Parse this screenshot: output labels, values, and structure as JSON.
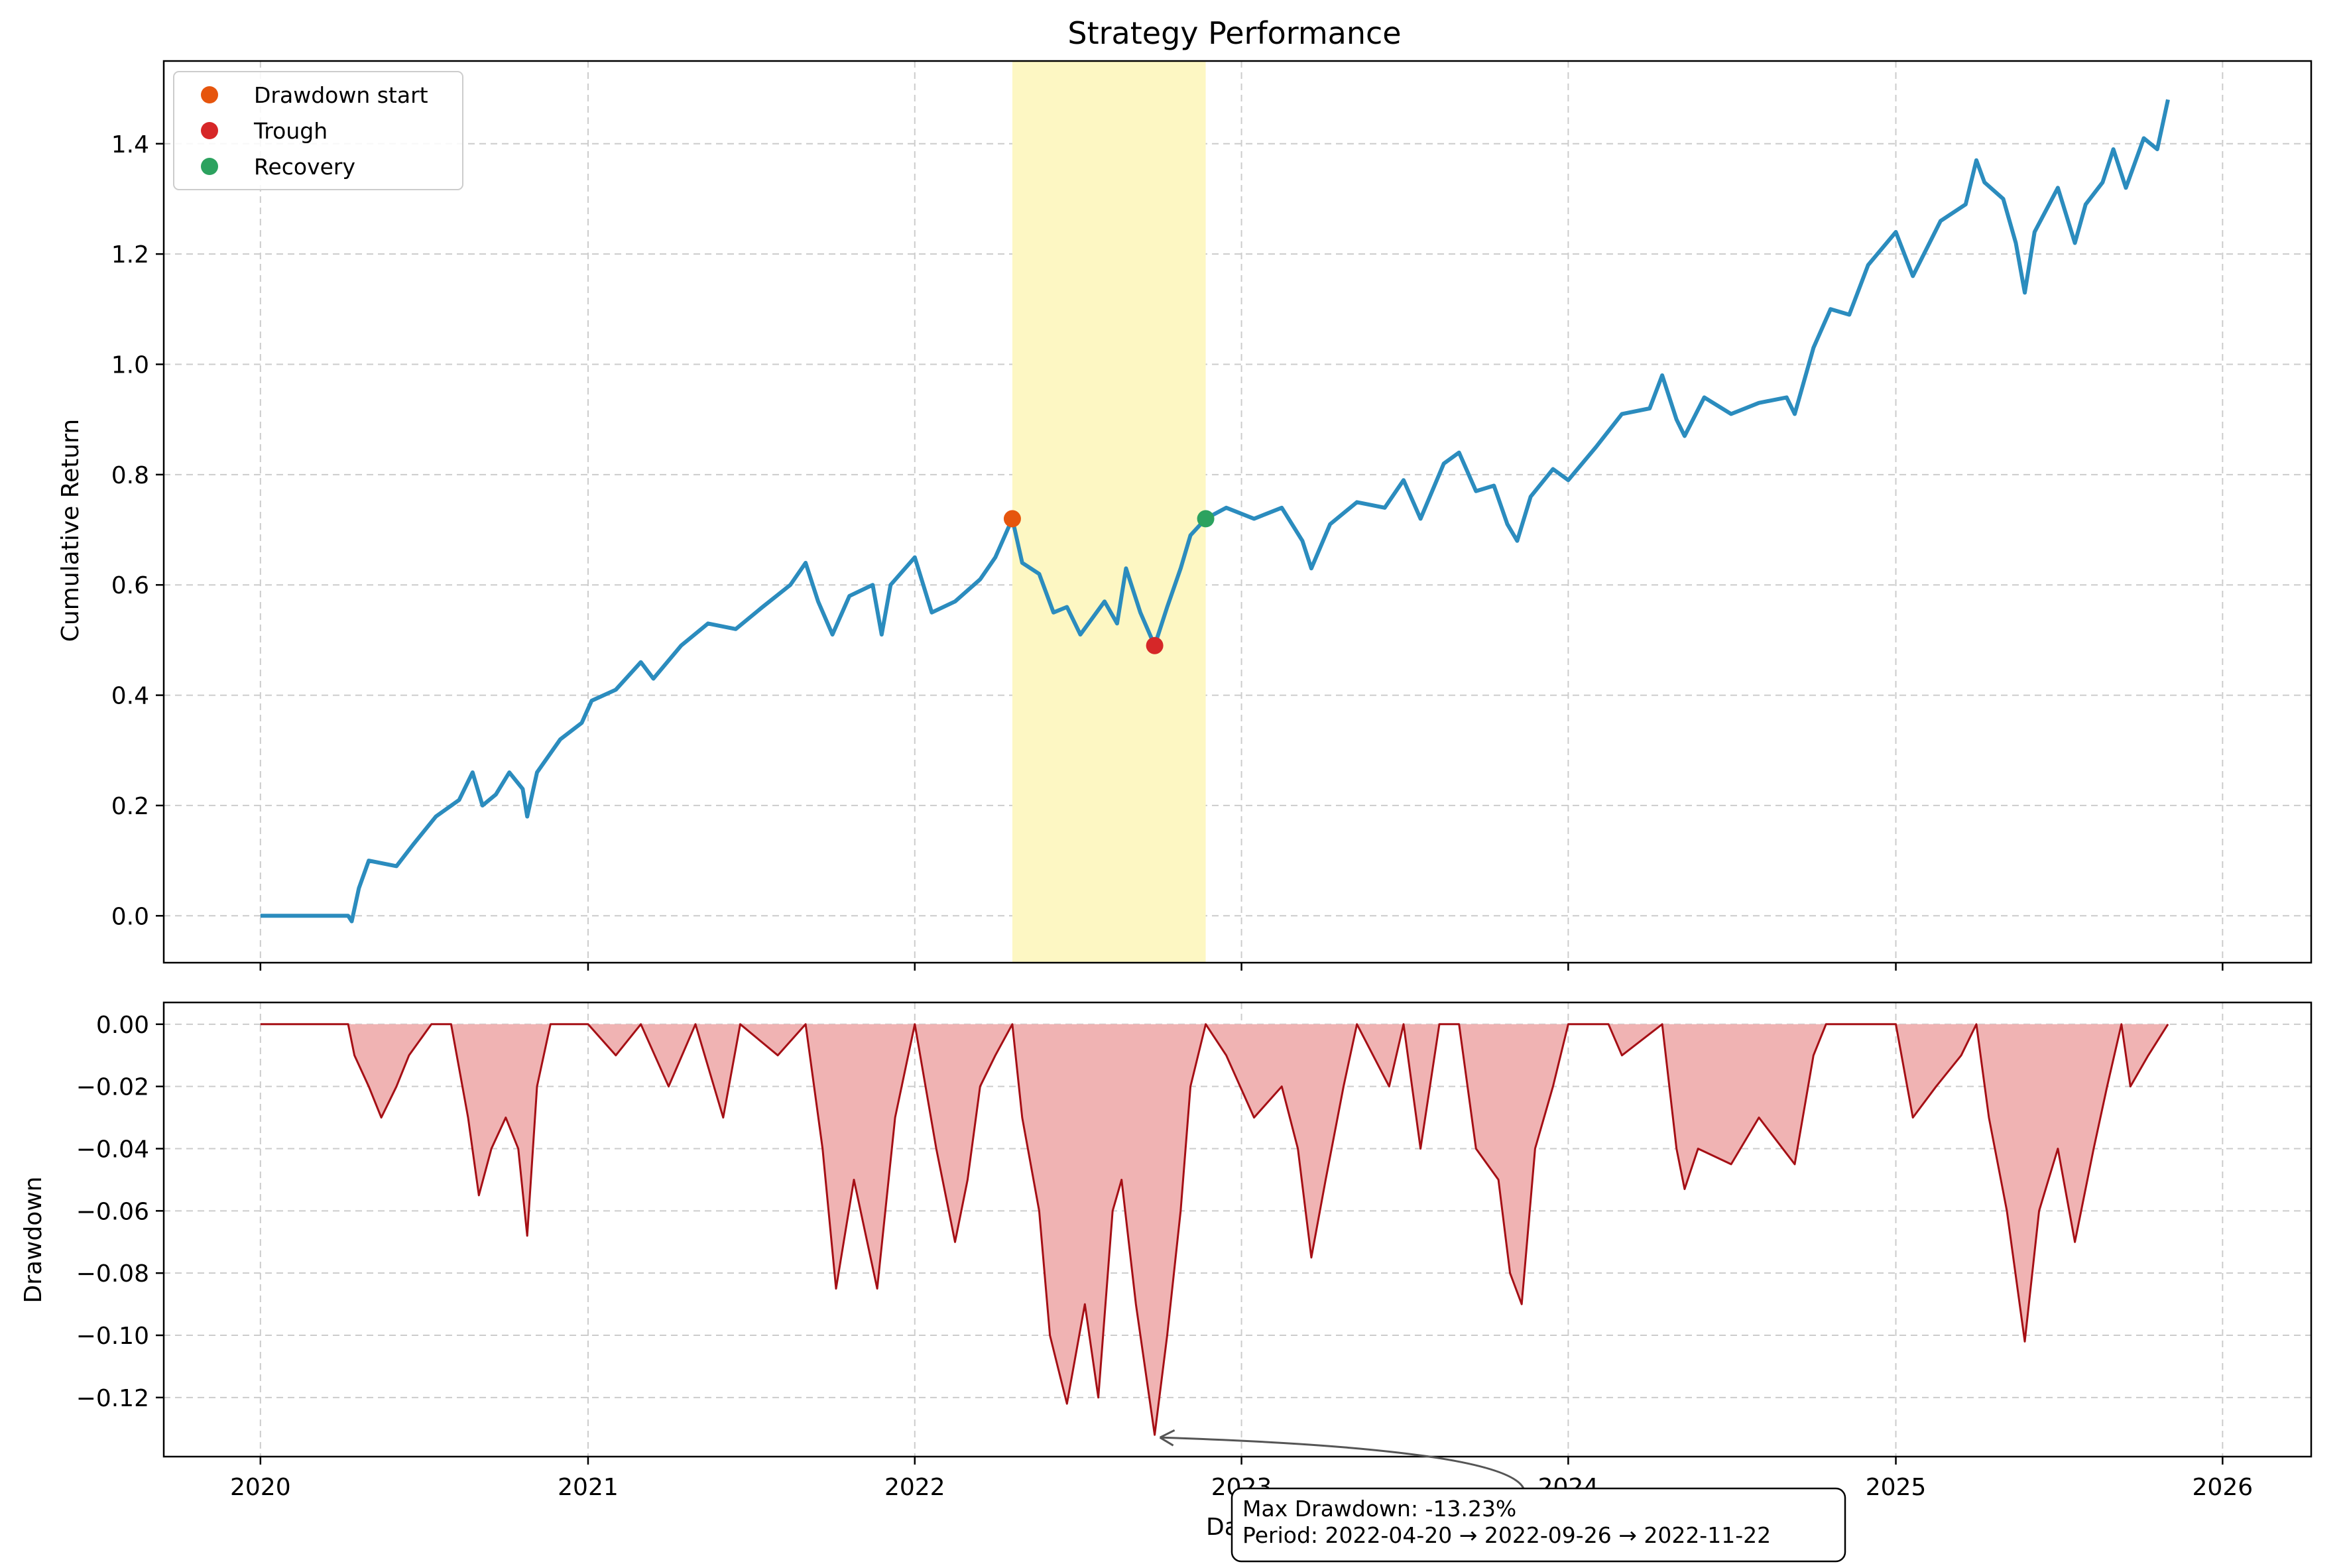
{
  "figure_title": "Strategy Performance",
  "chart_data": [
    {
      "type": "line",
      "title": "Strategy Performance",
      "xlabel": "",
      "ylabel": "Cumulative Return",
      "xlim": [
        "2019-09-15",
        "2026-04-10"
      ],
      "ylim": [
        -0.085,
        1.55
      ],
      "x_ticks": [
        "2020",
        "2021",
        "2022",
        "2023",
        "2024",
        "2025",
        "2026"
      ],
      "y_ticks": [
        0.0,
        0.2,
        0.4,
        0.6,
        0.8,
        1.0,
        1.2,
        1.4
      ],
      "y_tick_labels": [
        "0.0",
        "0.2",
        "0.4",
        "0.6",
        "0.8",
        "1.0",
        "1.2",
        "1.4"
      ],
      "grid": true,
      "legend_position": "top-left",
      "legend": [
        "Drawdown start",
        "Trough",
        "Recovery"
      ],
      "shaded_period": {
        "start": "2022-04-20",
        "end": "2022-11-22",
        "color": "#fdf7c3"
      },
      "line_color": "#2b8cbe",
      "series": [
        {
          "name": "",
          "color": "#2b8cbe",
          "points": [
            [
              "2020-01-01",
              0.0
            ],
            [
              "2020-04-08",
              0.0
            ],
            [
              "2020-04-12",
              -0.01
            ],
            [
              "2020-04-20",
              0.05
            ],
            [
              "2020-05-01",
              0.1
            ],
            [
              "2020-06-01",
              0.09
            ],
            [
              "2020-06-20",
              0.13
            ],
            [
              "2020-07-15",
              0.18
            ],
            [
              "2020-08-10",
              0.21
            ],
            [
              "2020-08-25",
              0.26
            ],
            [
              "2020-09-05",
              0.2
            ],
            [
              "2020-09-20",
              0.22
            ],
            [
              "2020-10-05",
              0.26
            ],
            [
              "2020-10-20",
              0.23
            ],
            [
              "2020-10-25",
              0.18
            ],
            [
              "2020-11-05",
              0.26
            ],
            [
              "2020-12-01",
              0.32
            ],
            [
              "2020-12-25",
              0.35
            ],
            [
              "2021-01-05",
              0.39
            ],
            [
              "2021-02-01",
              0.41
            ],
            [
              "2021-03-01",
              0.46
            ],
            [
              "2021-03-15",
              0.43
            ],
            [
              "2021-04-15",
              0.49
            ],
            [
              "2021-05-15",
              0.53
            ],
            [
              "2021-06-15",
              0.52
            ],
            [
              "2021-07-15",
              0.56
            ],
            [
              "2021-08-15",
              0.6
            ],
            [
              "2021-09-01",
              0.64
            ],
            [
              "2021-09-15",
              0.57
            ],
            [
              "2021-10-01",
              0.51
            ],
            [
              "2021-10-20",
              0.58
            ],
            [
              "2021-11-15",
              0.6
            ],
            [
              "2021-11-25",
              0.51
            ],
            [
              "2021-12-05",
              0.6
            ],
            [
              "2022-01-01",
              0.65
            ],
            [
              "2022-01-20",
              0.55
            ],
            [
              "2022-02-15",
              0.57
            ],
            [
              "2022-03-15",
              0.61
            ],
            [
              "2022-04-01",
              0.65
            ],
            [
              "2022-04-20",
              0.72
            ],
            [
              "2022-05-01",
              0.64
            ],
            [
              "2022-05-20",
              0.62
            ],
            [
              "2022-06-05",
              0.55
            ],
            [
              "2022-06-20",
              0.56
            ],
            [
              "2022-07-05",
              0.51
            ],
            [
              "2022-08-01",
              0.57
            ],
            [
              "2022-08-15",
              0.53
            ],
            [
              "2022-08-25",
              0.63
            ],
            [
              "2022-09-10",
              0.55
            ],
            [
              "2022-09-26",
              0.49
            ],
            [
              "2022-10-10",
              0.56
            ],
            [
              "2022-10-25",
              0.63
            ],
            [
              "2022-11-05",
              0.69
            ],
            [
              "2022-11-22",
              0.72
            ],
            [
              "2022-12-15",
              0.74
            ],
            [
              "2023-01-15",
              0.72
            ],
            [
              "2023-02-15",
              0.74
            ],
            [
              "2023-03-10",
              0.68
            ],
            [
              "2023-03-20",
              0.63
            ],
            [
              "2023-04-10",
              0.71
            ],
            [
              "2023-05-10",
              0.75
            ],
            [
              "2023-06-10",
              0.74
            ],
            [
              "2023-07-01",
              0.79
            ],
            [
              "2023-07-20",
              0.72
            ],
            [
              "2023-08-15",
              0.82
            ],
            [
              "2023-09-01",
              0.84
            ],
            [
              "2023-09-20",
              0.77
            ],
            [
              "2023-10-10",
              0.78
            ],
            [
              "2023-10-25",
              0.71
            ],
            [
              "2023-11-05",
              0.68
            ],
            [
              "2023-11-20",
              0.76
            ],
            [
              "2023-12-15",
              0.81
            ],
            [
              "2024-01-01",
              0.79
            ],
            [
              "2024-02-01",
              0.85
            ],
            [
              "2024-03-01",
              0.91
            ],
            [
              "2024-04-01",
              0.92
            ],
            [
              "2024-04-15",
              0.98
            ],
            [
              "2024-05-01",
              0.9
            ],
            [
              "2024-05-10",
              0.87
            ],
            [
              "2024-06-01",
              0.94
            ],
            [
              "2024-07-01",
              0.91
            ],
            [
              "2024-08-01",
              0.93
            ],
            [
              "2024-09-01",
              0.94
            ],
            [
              "2024-09-10",
              0.91
            ],
            [
              "2024-10-01",
              1.03
            ],
            [
              "2024-10-20",
              1.1
            ],
            [
              "2024-11-10",
              1.09
            ],
            [
              "2024-12-01",
              1.18
            ],
            [
              "2025-01-01",
              1.24
            ],
            [
              "2025-01-20",
              1.16
            ],
            [
              "2025-02-20",
              1.26
            ],
            [
              "2025-03-20",
              1.29
            ],
            [
              "2025-04-01",
              1.37
            ],
            [
              "2025-04-10",
              1.33
            ],
            [
              "2025-05-01",
              1.3
            ],
            [
              "2025-05-15",
              1.22
            ],
            [
              "2025-05-25",
              1.13
            ],
            [
              "2025-06-05",
              1.24
            ],
            [
              "2025-07-01",
              1.32
            ],
            [
              "2025-07-20",
              1.22
            ],
            [
              "2025-08-01",
              1.29
            ],
            [
              "2025-08-20",
              1.33
            ],
            [
              "2025-09-01",
              1.39
            ],
            [
              "2025-09-15",
              1.32
            ],
            [
              "2025-10-05",
              1.41
            ],
            [
              "2025-10-20",
              1.39
            ],
            [
              "2025-11-01",
              1.48
            ]
          ]
        },
        {
          "name": "Drawdown start",
          "type": "scatter",
          "color": "#e6550d",
          "points": [
            [
              "2022-04-20",
              0.72
            ]
          ]
        },
        {
          "name": "Trough",
          "type": "scatter",
          "color": "#d62728",
          "points": [
            [
              "2022-09-26",
              0.49
            ]
          ]
        },
        {
          "name": "Recovery",
          "type": "scatter",
          "color": "#2ca25f",
          "points": [
            [
              "2022-11-22",
              0.72
            ]
          ]
        }
      ]
    },
    {
      "type": "area",
      "title": "",
      "xlabel": "Date",
      "ylabel": "Drawdown",
      "xlim": [
        "2019-09-15",
        "2026-04-10"
      ],
      "ylim": [
        -0.139,
        0.007
      ],
      "x_ticks": [
        "2020",
        "2021",
        "2022",
        "2023",
        "2024",
        "2025",
        "2026"
      ],
      "y_ticks": [
        0.0,
        -0.02,
        -0.04,
        -0.06,
        -0.08,
        -0.1,
        -0.12
      ],
      "y_tick_labels": [
        "0.00",
        "−0.02",
        "−0.04",
        "−0.06",
        "−0.08",
        "−0.10",
        "−0.12"
      ],
      "grid": true,
      "line_color": "#a50f15",
      "fill_color": "#f0b3b3",
      "series": [
        {
          "name": "",
          "points": [
            [
              "2020-01-01",
              0.0
            ],
            [
              "2020-04-08",
              0.0
            ],
            [
              "2020-04-15",
              -0.01
            ],
            [
              "2020-05-01",
              -0.02
            ],
            [
              "2020-05-15",
              -0.03
            ],
            [
              "2020-06-01",
              -0.02
            ],
            [
              "2020-06-15",
              -0.01
            ],
            [
              "2020-07-10",
              0.0
            ],
            [
              "2020-08-01",
              0.0
            ],
            [
              "2020-08-20",
              -0.03
            ],
            [
              "2020-09-01",
              -0.055
            ],
            [
              "2020-09-15",
              -0.04
            ],
            [
              "2020-10-01",
              -0.03
            ],
            [
              "2020-10-15",
              -0.04
            ],
            [
              "2020-10-25",
              -0.068
            ],
            [
              "2020-11-05",
              -0.02
            ],
            [
              "2020-11-20",
              0.0
            ],
            [
              "2021-01-01",
              0.0
            ],
            [
              "2021-02-01",
              -0.01
            ],
            [
              "2021-03-01",
              0.0
            ],
            [
              "2021-04-01",
              -0.02
            ],
            [
              "2021-05-01",
              0.0
            ],
            [
              "2021-06-01",
              -0.03
            ],
            [
              "2021-06-20",
              0.0
            ],
            [
              "2021-08-01",
              -0.01
            ],
            [
              "2021-09-01",
              0.0
            ],
            [
              "2021-09-20",
              -0.04
            ],
            [
              "2021-10-05",
              -0.085
            ],
            [
              "2021-10-25",
              -0.05
            ],
            [
              "2021-11-20",
              -0.085
            ],
            [
              "2021-12-10",
              -0.03
            ],
            [
              "2022-01-01",
              0.0
            ],
            [
              "2022-01-25",
              -0.04
            ],
            [
              "2022-02-15",
              -0.07
            ],
            [
              "2022-03-01",
              -0.05
            ],
            [
              "2022-03-15",
              -0.02
            ],
            [
              "2022-04-01",
              -0.01
            ],
            [
              "2022-04-20",
              0.0
            ],
            [
              "2022-05-01",
              -0.03
            ],
            [
              "2022-05-20",
              -0.06
            ],
            [
              "2022-06-01",
              -0.1
            ],
            [
              "2022-06-20",
              -0.122
            ],
            [
              "2022-07-10",
              -0.09
            ],
            [
              "2022-07-25",
              -0.12
            ],
            [
              "2022-08-10",
              -0.06
            ],
            [
              "2022-08-20",
              -0.05
            ],
            [
              "2022-09-05",
              -0.09
            ],
            [
              "2022-09-26",
              -0.132
            ],
            [
              "2022-10-10",
              -0.1
            ],
            [
              "2022-10-25",
              -0.06
            ],
            [
              "2022-11-05",
              -0.02
            ],
            [
              "2022-11-22",
              0.0
            ],
            [
              "2022-12-15",
              -0.01
            ],
            [
              "2023-01-15",
              -0.03
            ],
            [
              "2023-02-15",
              -0.02
            ],
            [
              "2023-03-05",
              -0.04
            ],
            [
              "2023-03-20",
              -0.075
            ],
            [
              "2023-04-05",
              -0.05
            ],
            [
              "2023-04-25",
              -0.02
            ],
            [
              "2023-05-10",
              0.0
            ],
            [
              "2023-06-15",
              -0.02
            ],
            [
              "2023-07-01",
              0.0
            ],
            [
              "2023-07-20",
              -0.04
            ],
            [
              "2023-08-10",
              0.0
            ],
            [
              "2023-09-01",
              0.0
            ],
            [
              "2023-09-20",
              -0.04
            ],
            [
              "2023-10-15",
              -0.05
            ],
            [
              "2023-10-28",
              -0.08
            ],
            [
              "2023-11-10",
              -0.09
            ],
            [
              "2023-11-25",
              -0.04
            ],
            [
              "2023-12-15",
              -0.02
            ],
            [
              "2024-01-01",
              0.0
            ],
            [
              "2024-02-15",
              0.0
            ],
            [
              "2024-03-01",
              -0.01
            ],
            [
              "2024-04-15",
              0.0
            ],
            [
              "2024-05-01",
              -0.04
            ],
            [
              "2024-05-10",
              -0.053
            ],
            [
              "2024-05-25",
              -0.04
            ],
            [
              "2024-07-01",
              -0.045
            ],
            [
              "2024-08-01",
              -0.03
            ],
            [
              "2024-09-10",
              -0.045
            ],
            [
              "2024-10-01",
              -0.01
            ],
            [
              "2024-10-15",
              0.0
            ],
            [
              "2024-12-01",
              0.0
            ],
            [
              "2025-01-01",
              0.0
            ],
            [
              "2025-01-20",
              -0.03
            ],
            [
              "2025-02-15",
              -0.02
            ],
            [
              "2025-03-15",
              -0.01
            ],
            [
              "2025-04-01",
              0.0
            ],
            [
              "2025-04-15",
              -0.03
            ],
            [
              "2025-05-05",
              -0.06
            ],
            [
              "2025-05-25",
              -0.102
            ],
            [
              "2025-06-10",
              -0.06
            ],
            [
              "2025-07-01",
              -0.04
            ],
            [
              "2025-07-20",
              -0.07
            ],
            [
              "2025-08-10",
              -0.04
            ],
            [
              "2025-08-25",
              -0.02
            ],
            [
              "2025-09-10",
              0.0
            ],
            [
              "2025-09-20",
              -0.02
            ],
            [
              "2025-10-10",
              -0.01
            ],
            [
              "2025-11-01",
              0.0
            ]
          ]
        }
      ],
      "annotation": {
        "lines": [
          "Max Drawdown: -13.23%",
          "Period: 2022-04-20 → 2022-09-26 → 2022-11-22"
        ],
        "arrow_target": [
          "2022-09-26",
          -0.132
        ]
      }
    }
  ]
}
